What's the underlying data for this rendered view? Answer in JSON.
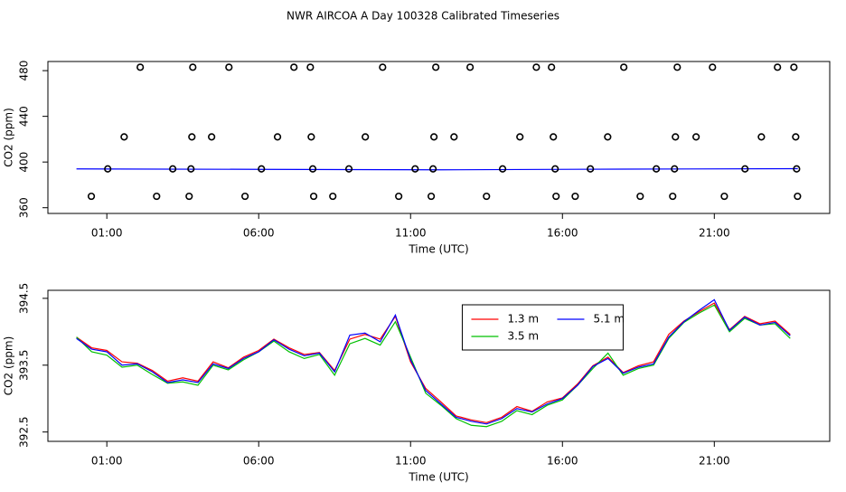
{
  "chart_data": [
    {
      "type": "line",
      "title": "NWR AIRCOA A  Day 100328  Calibrated Timeseries",
      "xlabel": "Time (UTC)",
      "ylabel": "CO2 (ppm)",
      "xlim": [
        -0.94,
        24.8
      ],
      "ylim": [
        355,
        488
      ],
      "xticks": [
        {
          "value": 1,
          "label": "01:00"
        },
        {
          "value": 6,
          "label": "06:00"
        },
        {
          "value": 11,
          "label": "11:00"
        },
        {
          "value": 16,
          "label": "16:00"
        },
        {
          "value": 21,
          "label": "21:00"
        }
      ],
      "yticks": [
        360,
        400,
        440,
        480
      ],
      "series": [
        {
          "type": "line",
          "color": "#0000ff",
          "x": [
            0,
            6,
            12,
            18,
            23.75
          ],
          "values": [
            394,
            393.6,
            393.2,
            393.8,
            394.2
          ]
        },
        {
          "type": "scatter",
          "color": "#000000",
          "x": [
            2.1,
            3.83,
            5.02,
            7.16,
            7.7,
            10.08,
            11.83,
            12.96,
            15.14,
            15.64,
            18.02,
            19.78,
            20.94,
            23.08,
            23.62,
            1.57,
            3.8,
            4.45,
            6.62,
            7.73,
            9.51,
            11.77,
            12.43,
            14.6,
            15.7,
            17.49,
            19.72,
            20.4,
            22.55,
            23.68,
            1.03,
            3.17,
            3.77,
            6.09,
            7.78,
            8.97,
            11.15,
            11.74,
            14.03,
            15.76,
            16.92,
            19.09,
            19.69,
            22.01,
            23.71,
            0.49,
            2.64,
            3.71,
            5.55,
            7.81,
            8.44,
            10.61,
            11.68,
            13.5,
            15.79,
            16.42,
            18.56,
            19.63,
            21.33,
            23.74
          ],
          "values": [
            483,
            483,
            483,
            483,
            483,
            483,
            483,
            483,
            483,
            483,
            483,
            483,
            483,
            483,
            483,
            422,
            422,
            422,
            422,
            422,
            422,
            422,
            422,
            422,
            422,
            422,
            422,
            422,
            422,
            422,
            394,
            394,
            394,
            394,
            394,
            394,
            394,
            394,
            394,
            394,
            394,
            394,
            394,
            394,
            394,
            370,
            370,
            370,
            370,
            370,
            370,
            370,
            370,
            370,
            370,
            370,
            370,
            370,
            370,
            370
          ]
        }
      ]
    },
    {
      "type": "line",
      "xlabel": "Time (UTC)",
      "ylabel": "CO2 (ppm)",
      "xlim": [
        -0.94,
        24.8
      ],
      "ylim": [
        392.36,
        394.62
      ],
      "xticks": [
        {
          "value": 1,
          "label": "01:00"
        },
        {
          "value": 6,
          "label": "06:00"
        },
        {
          "value": 11,
          "label": "11:00"
        },
        {
          "value": 16,
          "label": "16:00"
        },
        {
          "value": 21,
          "label": "21:00"
        }
      ],
      "yticks": [
        392.5,
        393.5,
        394.5
      ],
      "legend": "top",
      "x": [
        0,
        0.5,
        1,
        1.5,
        2,
        2.5,
        3,
        3.5,
        4,
        4.5,
        5,
        5.5,
        6,
        6.5,
        7,
        7.5,
        8,
        8.5,
        9,
        9.5,
        10,
        10.5,
        11,
        11.5,
        12,
        12.5,
        13,
        13.5,
        14,
        14.5,
        15,
        15.5,
        16,
        16.5,
        17,
        17.5,
        18,
        18.5,
        19,
        19.5,
        20,
        20.5,
        21,
        21.5,
        22,
        22.5,
        23,
        23.5
      ],
      "series": [
        {
          "name": "1.3 m",
          "color": "#ff0000",
          "values": [
            393.92,
            393.76,
            393.72,
            393.55,
            393.53,
            393.42,
            393.26,
            393.31,
            393.26,
            393.55,
            393.46,
            393.62,
            393.72,
            393.89,
            393.76,
            393.66,
            393.69,
            393.42,
            393.89,
            393.96,
            393.89,
            394.23,
            393.55,
            393.15,
            392.95,
            392.74,
            392.68,
            392.64,
            392.72,
            392.88,
            392.81,
            392.95,
            393.01,
            393.22,
            393.49,
            393.62,
            393.39,
            393.49,
            393.55,
            393.96,
            394.16,
            394.3,
            394.43,
            394.03,
            394.23,
            394.12,
            394.16,
            393.96
          ]
        },
        {
          "name": "3.5 m",
          "color": "#00c000",
          "values": [
            393.92,
            393.7,
            393.65,
            393.47,
            393.5,
            393.36,
            393.23,
            393.25,
            393.2,
            393.5,
            393.43,
            393.58,
            393.7,
            393.86,
            393.7,
            393.6,
            393.66,
            393.35,
            393.82,
            393.9,
            393.8,
            394.15,
            393.62,
            393.08,
            392.9,
            392.7,
            392.6,
            392.58,
            392.66,
            392.82,
            392.76,
            392.9,
            392.98,
            393.2,
            393.45,
            393.68,
            393.35,
            393.45,
            393.5,
            393.9,
            394.14,
            394.28,
            394.4,
            394.0,
            394.2,
            394.1,
            394.12,
            393.9
          ]
        },
        {
          "name": "5.1 m",
          "color": "#0000ff",
          "values": [
            393.9,
            393.74,
            393.7,
            393.5,
            393.52,
            393.4,
            393.24,
            393.28,
            393.24,
            393.52,
            393.45,
            393.6,
            393.7,
            393.88,
            393.74,
            393.64,
            393.68,
            393.4,
            393.95,
            393.98,
            393.85,
            394.25,
            393.58,
            393.12,
            392.92,
            392.72,
            392.66,
            392.62,
            392.7,
            392.85,
            392.8,
            392.92,
            393.0,
            393.2,
            393.48,
            393.6,
            393.38,
            393.47,
            393.52,
            393.92,
            394.15,
            394.32,
            394.48,
            394.02,
            394.22,
            394.1,
            394.14,
            393.94
          ]
        }
      ]
    }
  ]
}
